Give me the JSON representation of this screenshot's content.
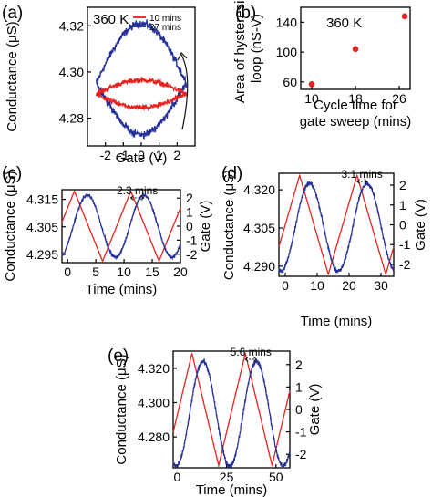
{
  "figure": {
    "colors": {
      "red": "#e8221e",
      "blue": "#23309a",
      "axis": "#000000"
    }
  },
  "chart_data": [
    {
      "id": "a",
      "panel_label": "(a)",
      "type": "line",
      "annotation": "360 K",
      "xlabel": "Gate (V)",
      "ylabel": "Conductance (μS)",
      "xlim": [
        -3.0,
        3.0
      ],
      "ylim": [
        4.268,
        4.328
      ],
      "xticks": [
        -2,
        -1,
        0,
        1,
        2
      ],
      "xtick_labels": [
        "-2",
        "-1",
        "0",
        "1",
        "2"
      ],
      "yticks": [
        4.28,
        4.3,
        4.32
      ],
      "ytick_labels": [
        "4.28",
        "4.30",
        "4.32"
      ],
      "legend_position": "top-right",
      "arrow": "clockwise sweep direction",
      "series": [
        {
          "name": "10 mins",
          "color": "#e8221e",
          "x_range": [
            -2.5,
            2.5
          ],
          "loop_center": 4.2905,
          "upper_offset": 0.006,
          "lower_offset": 0.006
        },
        {
          "name": "27 mins",
          "color": "#23309a",
          "x_range": [
            -2.5,
            2.5
          ],
          "loop_center": 4.2955,
          "upper_offset": 0.0255,
          "lower_offset": 0.0225
        }
      ]
    },
    {
      "id": "b",
      "panel_label": "(b)",
      "type": "scatter",
      "annotation": "360 K",
      "xlabel": "Cycle time for gate sweep (mins)",
      "xlabel_lines": [
        "Cycle time for",
        "gate sweep (mins)"
      ],
      "ylabel": "Area of hysteresis loop (nS-V)",
      "ylabel_lines": [
        "Area of hysteresis",
        "loop (nS-V)"
      ],
      "xlim": [
        8.0,
        28.0
      ],
      "ylim": [
        50,
        160
      ],
      "xticks": [
        10,
        18,
        26
      ],
      "xtick_labels": [
        "10",
        "18",
        "26"
      ],
      "yticks": [
        60,
        100,
        140
      ],
      "ytick_labels": [
        "60",
        "100",
        "140"
      ],
      "series": [
        {
          "color": "#e8221e",
          "x": [
            10,
            18,
            27
          ],
          "y": [
            57,
            104,
            148
          ]
        }
      ]
    },
    {
      "id": "c",
      "panel_label": "(c)",
      "type": "line",
      "xlabel": "Time (mins)",
      "ylabel": "Conductance (μS)",
      "y2label": "Gate (V)",
      "xlim": [
        -1.0,
        20.0
      ],
      "ylim": [
        4.292,
        4.3185
      ],
      "y2lim": [
        -2.6,
        2.6
      ],
      "xticks": [
        0,
        5,
        10,
        15,
        20
      ],
      "xtick_labels": [
        "0",
        "5",
        "10",
        "15",
        "20"
      ],
      "yticks": [
        4.295,
        4.305,
        4.315
      ],
      "ytick_labels": [
        "4.295",
        "4.305",
        "4.315"
      ],
      "y2ticks": [
        -2,
        -1,
        0,
        1,
        2
      ],
      "y2tick_labels": [
        "-2",
        "-1",
        "0",
        "1",
        "2"
      ],
      "lag_annotation": "2.3 mins",
      "series": [
        {
          "name": "Gate",
          "axis": "right",
          "color": "#e8221e",
          "kind": "triangle",
          "period": 10.0,
          "x_range": [
            -1.0,
            20.0
          ],
          "peaks_at": [
            1.2,
            11.2
          ],
          "valleys_at": [
            6.2,
            16.2
          ],
          "amplitude": 2.5
        },
        {
          "name": "Conductance",
          "axis": "left",
          "color": "#23309a",
          "kind": "sine",
          "period": 10.0,
          "x_range": [
            -1.0,
            20.0
          ],
          "peaks_at": [
            3.5,
            13.5
          ],
          "min": 4.294,
          "max": 4.3165
        }
      ]
    },
    {
      "id": "d",
      "panel_label": "(d)",
      "type": "line",
      "xlabel": "Time (mins)",
      "ylabel": "Conductance (μS)",
      "y2label": "Gate (V)",
      "xlim": [
        -2.0,
        34.0
      ],
      "ylim": [
        4.286,
        4.3265
      ],
      "y2lim": [
        -2.6,
        2.6
      ],
      "xticks": [
        0,
        10,
        20,
        30
      ],
      "xtick_labels": [
        "0",
        "10",
        "20",
        "30"
      ],
      "yticks": [
        4.29,
        4.305,
        4.32
      ],
      "ytick_labels": [
        "4.290",
        "4.305",
        "4.320"
      ],
      "y2ticks": [
        -2,
        -1,
        0,
        1,
        2
      ],
      "y2tick_labels": [
        "-2",
        "-1",
        "0",
        "1",
        "2"
      ],
      "lag_annotation": "3.1 mins",
      "series": [
        {
          "name": "Gate",
          "axis": "right",
          "color": "#e8221e",
          "kind": "triangle",
          "period": 18.0,
          "x_range": [
            -2.0,
            34.0
          ],
          "peaks_at": [
            4.5,
            22.5
          ],
          "valleys_at": [
            13.5,
            31.5
          ],
          "amplitude": 2.5
        },
        {
          "name": "Conductance",
          "axis": "left",
          "color": "#23309a",
          "kind": "sine",
          "period": 18.0,
          "x_range": [
            -2.0,
            34.0
          ],
          "peaks_at": [
            7.6,
            25.6
          ],
          "min": 4.288,
          "max": 4.3225
        }
      ]
    },
    {
      "id": "e",
      "panel_label": "(e)",
      "type": "line",
      "xlabel": "Time (mins)",
      "ylabel": "Conductance (μS)",
      "y2label": "Gate (V)",
      "xlim": [
        -2.0,
        57.0
      ],
      "ylim": [
        4.262,
        4.33
      ],
      "y2lim": [
        -2.6,
        2.6
      ],
      "xticks": [
        0,
        25,
        50
      ],
      "xtick_labels": [
        "0",
        "25",
        "50"
      ],
      "yticks": [
        4.28,
        4.3,
        4.32
      ],
      "ytick_labels": [
        "4.280",
        "4.300",
        "4.320"
      ],
      "y2ticks": [
        -2,
        -1,
        0,
        1,
        2
      ],
      "y2tick_labels": [
        "-2",
        "-1",
        "0",
        "1",
        "2"
      ],
      "lag_annotation": "5.6 mins",
      "series": [
        {
          "name": "Gate",
          "axis": "right",
          "color": "#e8221e",
          "kind": "triangle",
          "period": 27.0,
          "x_range": [
            -2.0,
            57.0
          ],
          "peaks_at": [
            7.5,
            34.5
          ],
          "valleys_at": [
            21.0,
            48.0
          ],
          "amplitude": 2.5
        },
        {
          "name": "Conductance",
          "axis": "left",
          "color": "#23309a",
          "kind": "sine",
          "period": 27.0,
          "x_range": [
            -2.0,
            57.0
          ],
          "peaks_at": [
            13.1,
            40.1
          ],
          "min": 4.263,
          "max": 4.324
        }
      ]
    }
  ]
}
